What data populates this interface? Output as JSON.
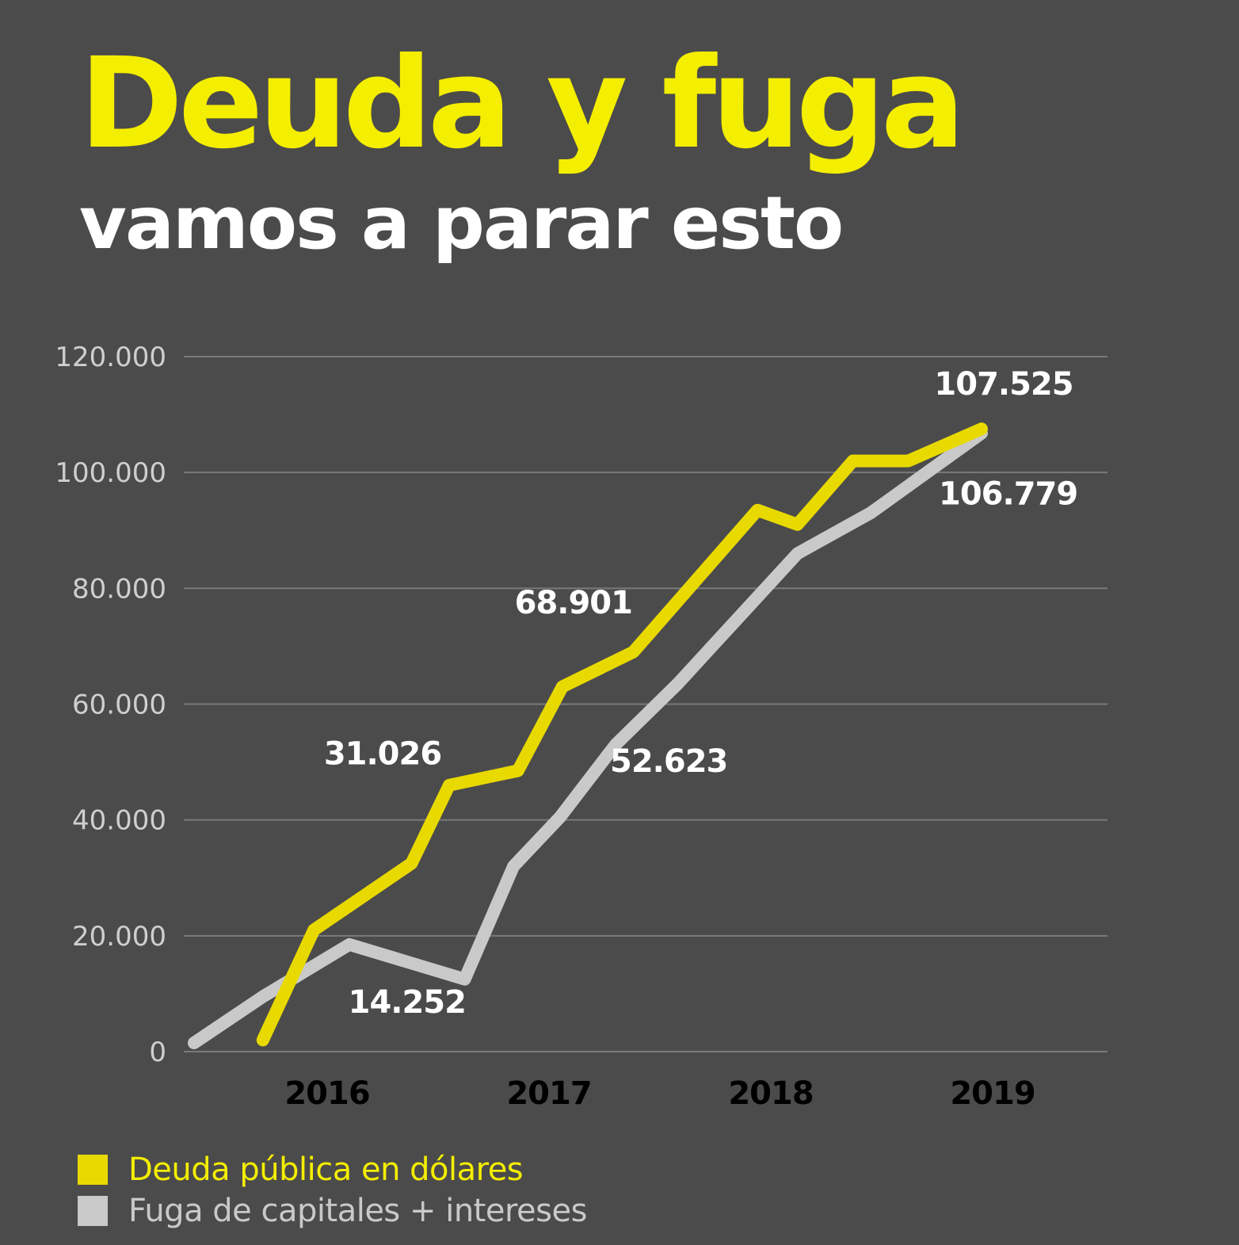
{
  "title": "Deuda y fuga",
  "subtitle": "vamos a parar esto",
  "colors": {
    "background": "#4b4b4b",
    "title": "#f4ee00",
    "subtitle": "#ffffff",
    "deuda": "#e8d900",
    "fuga": "#c9c9c9",
    "grid": "#7a7a7a",
    "tick_label": "#cfcfcf",
    "year_label": "#000000",
    "data_label": "#ffffff",
    "legend_deuda_text": "#f4ee00",
    "legend_fuga_text": "#c9c9c9"
  },
  "chart_data": {
    "type": "line",
    "title": "Deuda y fuga",
    "subtitle": "vamos a parar esto",
    "xlabel": "",
    "ylabel": "",
    "ylim": [
      0,
      120000
    ],
    "yticks": [
      0,
      20000,
      40000,
      60000,
      80000,
      100000,
      120000
    ],
    "ytick_labels": [
      "0",
      "20.000",
      "40.000",
      "60.000",
      "80.000",
      "100.000",
      "120.000"
    ],
    "grid": true,
    "xlim": [
      2015.4,
      2019.4
    ],
    "xticks": [
      2016,
      2017,
      2018,
      2019
    ],
    "xtick_labels": [
      "2016",
      "2017",
      "2018",
      "2019"
    ],
    "legend_position": "bottom-left",
    "series": [
      {
        "key": "deuda",
        "name": "Deuda pública en dólares",
        "x": [
          2015.71,
          2015.94,
          2016.38,
          2016.55,
          2016.86,
          2017.06,
          2017.38,
          2017.94,
          2018.12,
          2018.37,
          2018.62,
          2018.95
        ],
        "values": [
          2000,
          21000,
          32500,
          46000,
          48500,
          63000,
          69000,
          93500,
          91000,
          102000,
          102000,
          107525
        ]
      },
      {
        "key": "fuga",
        "name": "Fuga de capitales + intereses",
        "x": [
          2015.4,
          2015.71,
          2016.1,
          2016.62,
          2016.84,
          2017.05,
          2017.3,
          2017.58,
          2018.12,
          2018.45,
          2018.95
        ],
        "values": [
          1500,
          9500,
          18500,
          12500,
          32000,
          40500,
          53000,
          63500,
          86000,
          93000,
          106779
        ]
      }
    ],
    "annotations": [
      {
        "series": "deuda",
        "text": "31.026",
        "x": 2016.25,
        "y": 49600
      },
      {
        "series": "fuga",
        "text": "14.252",
        "x": 2016.36,
        "y": 6700
      },
      {
        "series": "deuda",
        "text": "68.901",
        "x": 2017.11,
        "y": 75700
      },
      {
        "series": "fuga",
        "text": "52.623",
        "x": 2017.54,
        "y": 48300
      },
      {
        "series": "deuda",
        "text": "107.525",
        "x": 2019.05,
        "y": 113400
      },
      {
        "series": "fuga",
        "text": "106.779",
        "x": 2019.07,
        "y": 94500
      }
    ]
  },
  "legend": {
    "items": [
      {
        "key": "deuda",
        "label": "Deuda pública en dólares"
      },
      {
        "key": "fuga",
        "label": "Fuga de capitales + intereses"
      }
    ]
  }
}
